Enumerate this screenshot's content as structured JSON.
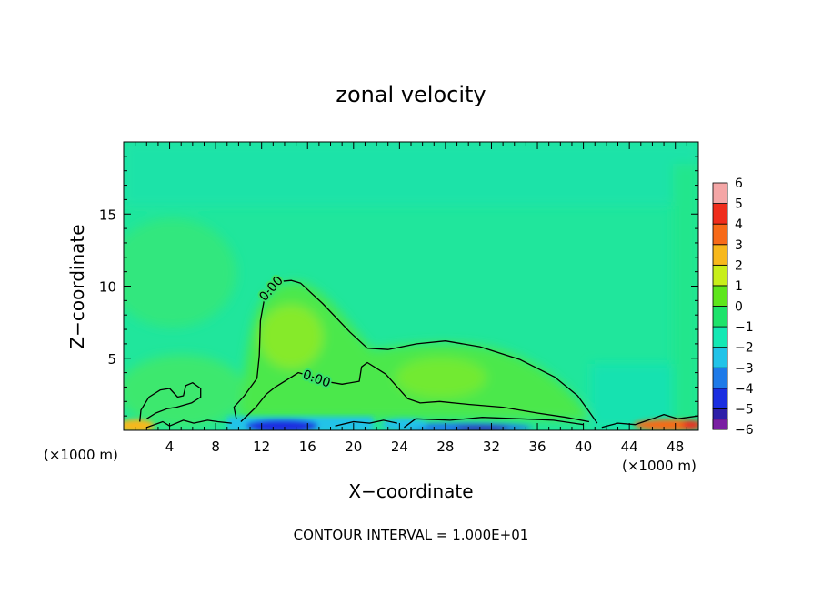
{
  "chart_data": {
    "type": "heatmap",
    "title": "zonal velocity",
    "xlabel": "X−coordinate",
    "ylabel": "Z−coordinate",
    "x_unit_left": "(×1000 m)",
    "x_unit_right": "(×1000 m)",
    "footer": "CONTOUR INTERVAL = 1.000E+01",
    "xlim": [
      0,
      50
    ],
    "ylim": [
      0,
      20
    ],
    "x_ticks": [
      4,
      8,
      12,
      16,
      20,
      24,
      28,
      32,
      36,
      40,
      44,
      48
    ],
    "x_tick_labels": [
      "4",
      "8",
      "12",
      "16",
      "20",
      "24",
      "28",
      "32",
      "36",
      "40",
      "44",
      "48"
    ],
    "y_ticks": [
      5,
      10,
      15
    ],
    "y_tick_labels": [
      "5",
      "10",
      "15"
    ],
    "colorbar": {
      "levels": [
        -6,
        -5,
        -4,
        -3,
        -2,
        -1,
        0,
        1,
        2,
        3,
        4,
        5,
        6
      ],
      "labels": [
        "−6",
        "−5",
        "−4",
        "−3",
        "−2",
        "−1",
        "0",
        "1",
        "2",
        "3",
        "4",
        "5",
        "6"
      ],
      "colors": [
        "#7a1fa2",
        "#2d1fa8",
        "#1a2ee0",
        "#1e7ae8",
        "#21c3e8",
        "#14e8b4",
        "#1ee36b",
        "#5ee61c",
        "#c8ee1a",
        "#f7b81c",
        "#f76a18",
        "#ef2d1c",
        "#f4a6a6"
      ]
    },
    "contours": [
      {
        "label": "0.00",
        "points": [
          [
            9.8,
            0.8
          ],
          [
            9.6,
            1.6
          ],
          [
            10.5,
            2.4
          ],
          [
            11.6,
            3.6
          ],
          [
            11.8,
            5.2
          ],
          [
            11.9,
            7.6
          ],
          [
            12.3,
            9.4
          ],
          [
            13.3,
            10.3
          ],
          [
            14.6,
            10.4
          ],
          [
            15.4,
            10.2
          ],
          [
            17.3,
            8.8
          ],
          [
            19.7,
            6.8
          ],
          [
            21.2,
            5.7
          ],
          [
            23.0,
            5.6
          ],
          [
            25.5,
            6.0
          ],
          [
            28.0,
            6.2
          ],
          [
            31.0,
            5.8
          ],
          [
            34.5,
            4.9
          ],
          [
            37.5,
            3.7
          ],
          [
            39.5,
            2.4
          ],
          [
            40.5,
            1.3
          ],
          [
            41.2,
            0.5
          ]
        ]
      },
      {
        "label": "0.00",
        "points": [
          [
            10.2,
            0.6
          ],
          [
            11.5,
            1.6
          ],
          [
            12.4,
            2.5
          ],
          [
            13.2,
            3.0
          ],
          [
            14.6,
            3.7
          ],
          [
            15.2,
            4.0
          ],
          [
            16.1,
            3.8
          ],
          [
            17.5,
            3.4
          ],
          [
            19.0,
            3.2
          ],
          [
            20.5,
            3.4
          ],
          [
            20.7,
            4.4
          ],
          [
            21.2,
            4.7
          ],
          [
            22.8,
            3.9
          ],
          [
            23.7,
            3.1
          ],
          [
            24.7,
            2.2
          ],
          [
            25.8,
            1.9
          ],
          [
            27.5,
            2.0
          ],
          [
            30.0,
            1.8
          ],
          [
            33.0,
            1.6
          ],
          [
            36.0,
            1.2
          ],
          [
            38.5,
            0.9
          ],
          [
            40.5,
            0.6
          ]
        ]
      },
      {
        "label": "",
        "points": [
          [
            1.4,
            0.6
          ],
          [
            1.5,
            1.4
          ],
          [
            2.2,
            2.3
          ],
          [
            3.2,
            2.8
          ],
          [
            4.0,
            2.9
          ],
          [
            4.7,
            2.3
          ],
          [
            5.2,
            2.4
          ],
          [
            5.4,
            3.1
          ],
          [
            6.0,
            3.3
          ],
          [
            6.7,
            2.9
          ],
          [
            6.7,
            2.3
          ],
          [
            5.9,
            1.9
          ],
          [
            4.6,
            1.6
          ],
          [
            3.8,
            1.5
          ],
          [
            2.8,
            1.2
          ],
          [
            2.0,
            0.8
          ]
        ]
      },
      {
        "label": "",
        "points": [
          [
            2.0,
            0.2
          ],
          [
            3.4,
            0.6
          ],
          [
            4.0,
            0.3
          ],
          [
            5.2,
            0.7
          ],
          [
            6.1,
            0.5
          ],
          [
            7.3,
            0.7
          ],
          [
            8.2,
            0.6
          ],
          [
            9.4,
            0.5
          ]
        ]
      },
      {
        "label": "",
        "points": [
          [
            18.4,
            0.3
          ],
          [
            20.0,
            0.6
          ],
          [
            21.4,
            0.5
          ],
          [
            22.6,
            0.7
          ],
          [
            23.8,
            0.5
          ]
        ]
      },
      {
        "label": "",
        "points": [
          [
            24.4,
            0.2
          ],
          [
            25.4,
            0.8
          ],
          [
            28.4,
            0.7
          ],
          [
            31.2,
            0.9
          ],
          [
            34.5,
            0.8
          ],
          [
            37.4,
            0.7
          ],
          [
            40.0,
            0.4
          ]
        ]
      },
      {
        "label": "",
        "points": [
          [
            41.6,
            0.2
          ],
          [
            43.0,
            0.5
          ],
          [
            44.5,
            0.4
          ],
          [
            46.0,
            0.8
          ],
          [
            47.0,
            1.1
          ],
          [
            48.2,
            0.8
          ],
          [
            50.0,
            1.0
          ]
        ]
      }
    ]
  }
}
